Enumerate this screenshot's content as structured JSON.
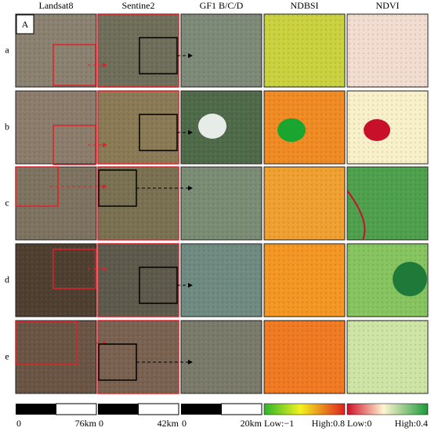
{
  "columns": [
    "Landsat8",
    "Sentine2",
    "GF1 B/C/D",
    "NDBSI",
    "NDVI"
  ],
  "rows": [
    "a",
    "b",
    "c",
    "d",
    "e"
  ],
  "north_arrow": "A",
  "scale_bars": [
    {
      "start": "0",
      "end": "76km"
    },
    {
      "start": "0",
      "end": "42km"
    },
    {
      "start": "0",
      "end": "20km"
    }
  ],
  "legends": [
    {
      "low": "Low:−1",
      "high": "High:0.8"
    },
    {
      "low": "Low:0",
      "high": "High:0.4"
    }
  ]
}
